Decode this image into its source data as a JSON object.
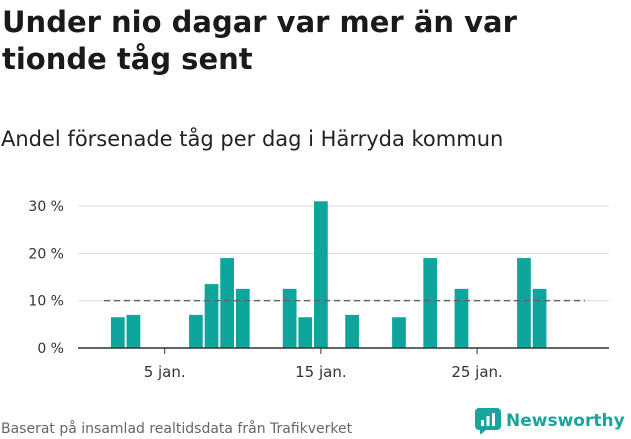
{
  "header": {
    "title": "Under nio dagar var mer än var tionde tåg sent",
    "subtitle": "Andel försenade tåg per dag i Härryda kommun"
  },
  "footer": {
    "source": "Baserat på insamlad realtidsdata från Trafikverket",
    "brand": "Newsworthy"
  },
  "colors": {
    "bar": "#0ea59c",
    "reference_line": "#666666",
    "grid": "#dddddd",
    "brand": "#19a59d"
  },
  "chart_data": {
    "type": "bar",
    "x": [
      2,
      3,
      4,
      5,
      6,
      7,
      8,
      9,
      10,
      11,
      12,
      13,
      14,
      15,
      16,
      17,
      18,
      19,
      20,
      21,
      22,
      23,
      24,
      25,
      26,
      27,
      28,
      29,
      30
    ],
    "values": [
      6.5,
      7,
      0,
      0,
      0,
      7,
      13.5,
      19,
      12.5,
      0,
      0,
      12.5,
      6.5,
      31,
      0,
      7,
      0,
      0,
      6.5,
      0,
      19,
      0,
      12.5,
      0,
      0,
      0,
      19,
      12.5,
      0
    ],
    "x_unit": "jan.",
    "xticks": [
      {
        "value": 5,
        "label": "5 jan."
      },
      {
        "value": 15,
        "label": "15 jan."
      },
      {
        "value": 25,
        "label": "25 jan."
      }
    ],
    "yticks": [
      {
        "value": 0,
        "label": "0 %"
      },
      {
        "value": 10,
        "label": "10 %"
      },
      {
        "value": 20,
        "label": "20 %"
      },
      {
        "value": 30,
        "label": "30 %"
      }
    ],
    "ylim": [
      0,
      30
    ],
    "reference_line": 10,
    "grid": true
  }
}
